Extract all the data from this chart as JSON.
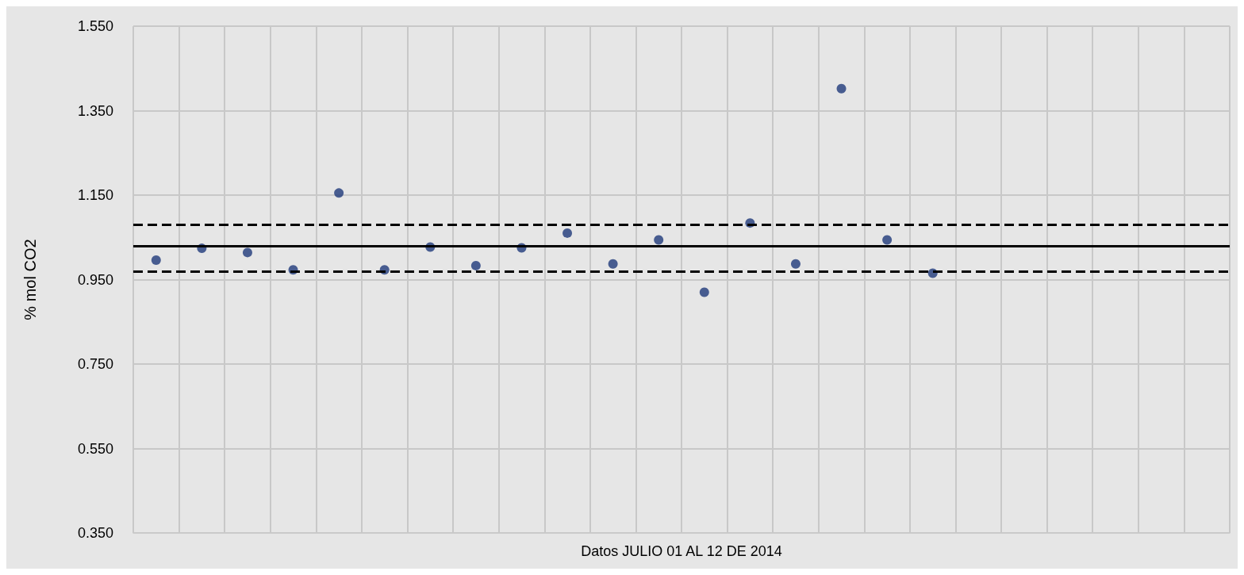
{
  "chart_data": {
    "type": "scatter",
    "xlabel": "Datos JULIO 01 AL 12 DE 2014",
    "ylabel": "% mol CO2",
    "categories": [
      null,
      null,
      null,
      null,
      null,
      null,
      null,
      null,
      null,
      null,
      null,
      null,
      null,
      null,
      null,
      null,
      null,
      null,
      null,
      null,
      null,
      null,
      null,
      null
    ],
    "series": [
      {
        "color": "#1f3a7a",
        "values": [
          0.996,
          1.024,
          1.014,
          0.973,
          1.155,
          0.973,
          1.027,
          0.983,
          1.025,
          1.06,
          0.987,
          1.044,
          0.92,
          1.084,
          0.987,
          1.402,
          1.044,
          0.965,
          null,
          null,
          null,
          null,
          null,
          null
        ]
      }
    ],
    "ylim": [
      0.35,
      1.55
    ],
    "yticks": [
      {
        "value": 0.35,
        "label": "0.350"
      },
      {
        "value": 0.55,
        "label": "0.550"
      },
      {
        "value": 0.75,
        "label": "0.750"
      },
      {
        "value": 0.95,
        "label": "0.950"
      },
      {
        "value": 1.15,
        "label": "1.150"
      },
      {
        "value": 1.35,
        "label": "1.350"
      },
      {
        "value": 1.55,
        "label": "1.550"
      }
    ],
    "ref_lines": [
      {
        "axis": "y",
        "value": 1.027,
        "color": "#000000",
        "line_style": "solid"
      },
      {
        "axis": "y",
        "value": 1.084,
        "color": "#000000",
        "line_style": "dashed"
      },
      {
        "axis": "y",
        "value": 0.967,
        "color": "#000000",
        "line_style": "dashed"
      }
    ],
    "grid": true,
    "marker": "circle"
  }
}
